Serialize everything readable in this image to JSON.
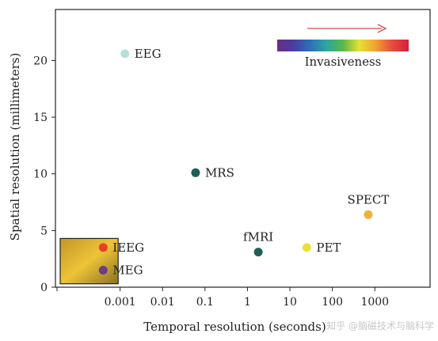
{
  "chart_data": {
    "type": "scatter",
    "xlabel": "Temporal resolution (seconds)",
    "ylabel": "Spatial resolution (millimeters)",
    "x_scale": "log",
    "x_ticks": [
      0.001,
      0.01,
      0.1,
      1,
      10,
      100,
      1000
    ],
    "x_tick_labels": [
      "0.001",
      "0.01",
      "0.1",
      "1",
      "10",
      "100",
      "1000"
    ],
    "xlim": [
      3e-05,
      20000
    ],
    "y_ticks": [
      0,
      5,
      10,
      15,
      20
    ],
    "y_tick_labels": [
      "0",
      "5",
      "10",
      "15",
      "20"
    ],
    "ylim": [
      0,
      24.5
    ],
    "grid": false,
    "points": [
      {
        "label": "EEG",
        "x": 0.0013,
        "y": 20.6,
        "color": "#b7dfda",
        "label_side": "right"
      },
      {
        "label": "MRS",
        "x": 0.06,
        "y": 10.1,
        "color": "#1f5f57",
        "label_side": "right"
      },
      {
        "label": "fMRI",
        "x": 1.8,
        "y": 3.1,
        "color": "#1f5f57",
        "label_side": "above"
      },
      {
        "label": "PET",
        "x": 25,
        "y": 3.5,
        "color": "#e8e040",
        "label_side": "right"
      },
      {
        "label": "SPECT",
        "x": 700,
        "y": 6.4,
        "color": "#ecb43b",
        "label_side": "above"
      },
      {
        "label": "IEEG",
        "x": 0.0004,
        "y": 3.5,
        "color": "#e84028",
        "label_side": "right"
      },
      {
        "label": "MEG",
        "x": 0.0004,
        "y": 1.5,
        "color": "#6a3d86",
        "label_side": "right"
      }
    ],
    "legend_scale": {
      "label": "Invasiveness",
      "colors": [
        "#6a2d82",
        "#4a3ea0",
        "#2f6fb8",
        "#2aa7a0",
        "#5ab848",
        "#e6e036",
        "#f2a030",
        "#e84a40",
        "#d81e3c"
      ],
      "arrow_color": "#d84a4a",
      "placement": "top-right"
    },
    "highlight_box": {
      "x_range": [
        3e-05,
        0.0009
      ],
      "y_range": [
        0.3,
        4.3
      ],
      "colors": [
        "#c4942a",
        "#eec436",
        "#8a7224"
      ]
    }
  },
  "watermark": "知乎 @脑磁技术与脑科学"
}
